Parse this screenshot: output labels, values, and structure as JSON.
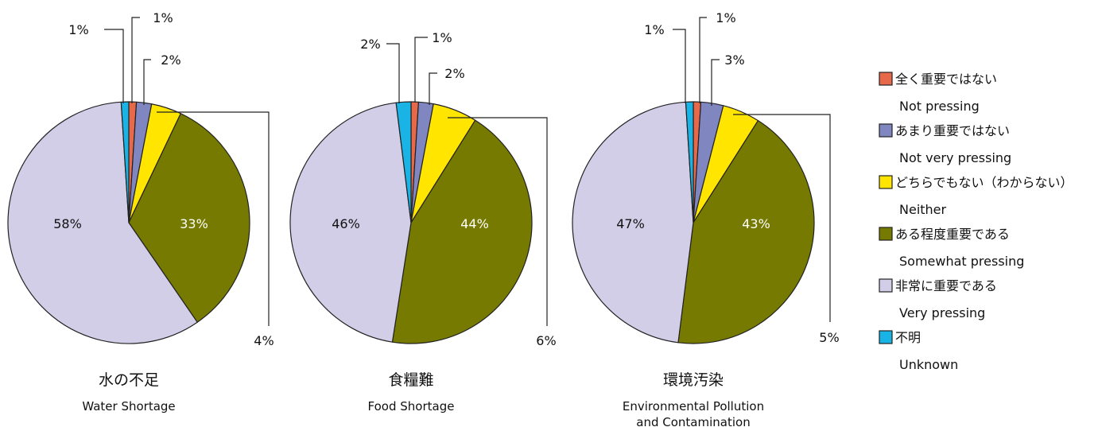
{
  "chart_data": {
    "type": "pie",
    "legend": {
      "placement": "right",
      "entries": [
        {
          "label_jp": "全く重要ではない",
          "label_en": "Not pressing",
          "color": "#E8684A"
        },
        {
          "label_jp": "あまり重要ではない",
          "label_en": "Not very pressing",
          "color": "#7F86C0"
        },
        {
          "label_jp": "どちらでもない（わからない）",
          "label_en": "Neither",
          "color": "#FFE500"
        },
        {
          "label_jp": "ある程度重要である",
          "label_en": "Somewhat pressing",
          "color": "#767A00"
        },
        {
          "label_jp": "非常に重要である",
          "label_en": "Very pressing",
          "color": "#D2CEE8"
        },
        {
          "label_jp": "不明",
          "label_en": "Unknown",
          "color": "#1AB3E6"
        }
      ]
    },
    "charts": [
      {
        "title_jp": "水の不足",
        "title_en": [
          "Water Shortage"
        ],
        "values": [
          1,
          2,
          4,
          33,
          58,
          1
        ],
        "labels": [
          "1%",
          "2%",
          "4%",
          "33%",
          "58%",
          "1%"
        ]
      },
      {
        "title_jp": "食糧難",
        "title_en": [
          "Food Shortage"
        ],
        "values": [
          1,
          2,
          6,
          44,
          46,
          2
        ],
        "labels": [
          "1%",
          "2%",
          "6%",
          "44%",
          "46%",
          "2%"
        ]
      },
      {
        "title_jp": "環境汚染",
        "title_en": [
          "Environmental Pollution",
          "and Contamination"
        ],
        "values": [
          1,
          3,
          5,
          43,
          47,
          1
        ],
        "labels": [
          "1%",
          "3%",
          "5%",
          "43%",
          "47%",
          "1%"
        ]
      }
    ]
  }
}
